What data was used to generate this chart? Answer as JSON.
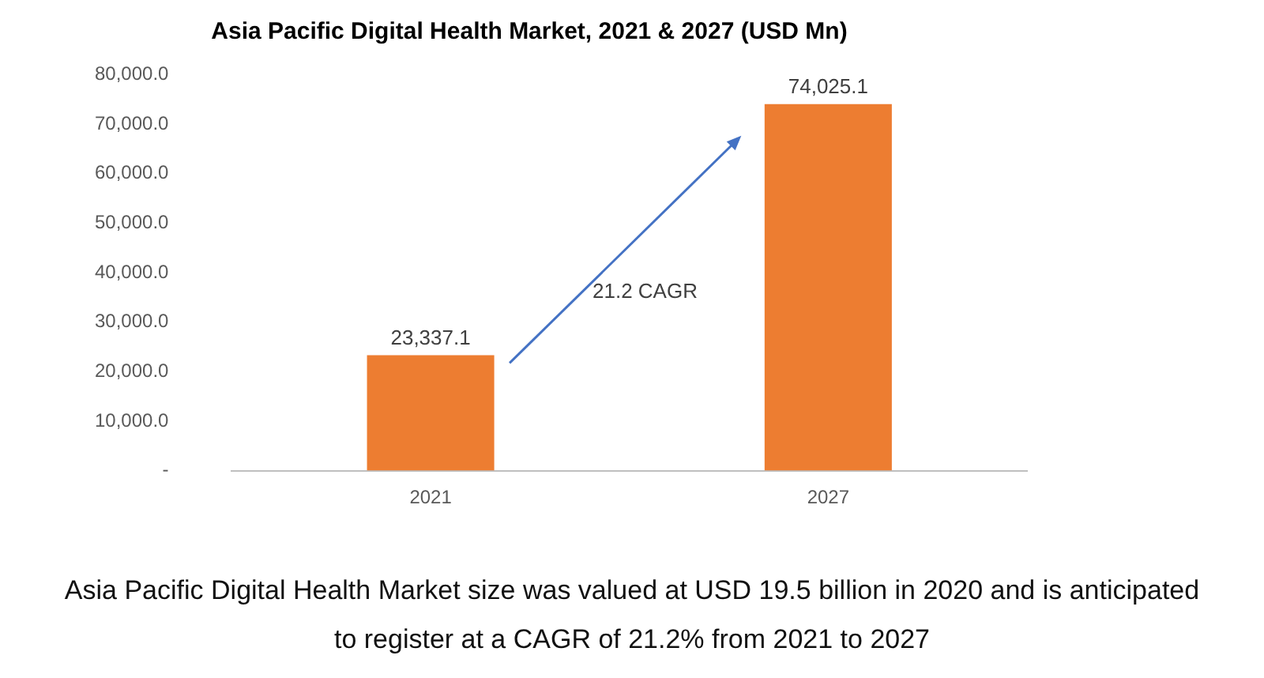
{
  "chart_data": {
    "type": "bar",
    "title": "Asia Pacific Digital Health Market, 2021 & 2027 (USD Mn)",
    "categories": [
      "2021",
      "2027"
    ],
    "values": [
      23337.1,
      74025.1
    ],
    "value_labels": [
      "23,337.1",
      "74,025.1"
    ],
    "color": "#ed7d31",
    "ylim": [
      0,
      80000
    ],
    "yticks": [
      {
        "value": 0,
        "label": "-"
      },
      {
        "value": 10000,
        "label": "10,000.0"
      },
      {
        "value": 20000,
        "label": "20,000.0"
      },
      {
        "value": 30000,
        "label": "30,000.0"
      },
      {
        "value": 40000,
        "label": "40,000.0"
      },
      {
        "value": 50000,
        "label": "50,000.0"
      },
      {
        "value": 60000,
        "label": "60,000.0"
      },
      {
        "value": 70000,
        "label": "70,000.0"
      },
      {
        "value": 80000,
        "label": "80,000.0"
      }
    ],
    "grid": false,
    "legend": false,
    "annotations": [
      "21.2 CAGR",
      "Asia Pacific Digital Health Market size was valued at USD 19.5 billion in 2020 and is anticipated to register at a CAGR of 21.2% from 2021 to 2027"
    ]
  }
}
